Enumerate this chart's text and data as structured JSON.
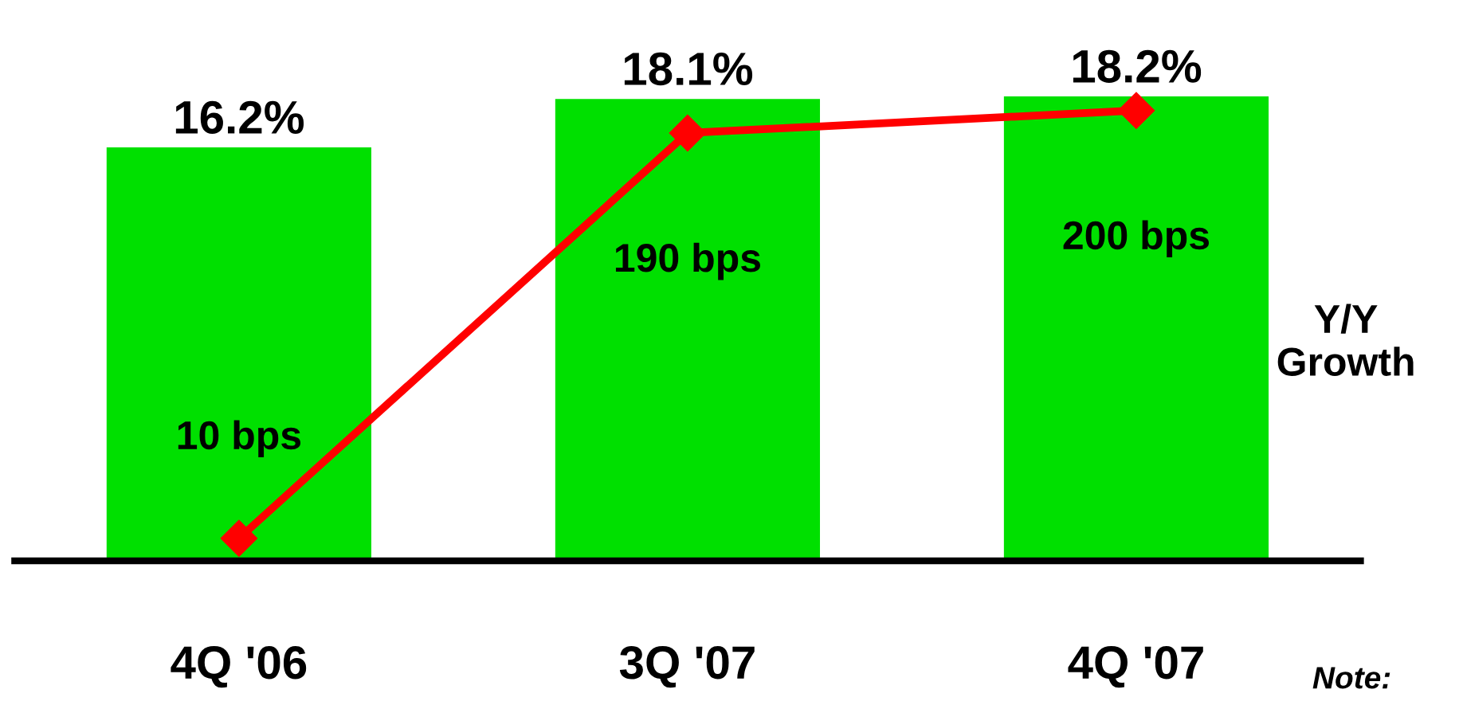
{
  "chart_data": {
    "type": "bar",
    "categories": [
      "4Q '06",
      "3Q '07",
      "4Q '07"
    ],
    "series": [
      {
        "color": "#00e000",
        "values": [
          16.2,
          18.1,
          18.2
        ],
        "value_labels": [
          "16.2%",
          "18.1%",
          "18.2%"
        ]
      },
      {
        "type": "line",
        "axis": "y2",
        "color": "#ff0000",
        "values": [
          10,
          190,
          200
        ],
        "value_labels": [
          "10 bps",
          "190 bps",
          "200 bps"
        ],
        "marker": "diamond"
      }
    ],
    "tick_labels": "x",
    "grid": false,
    "legend": false,
    "annotations": [
      "Y/Y\nGrowth",
      "Note:"
    ]
  }
}
